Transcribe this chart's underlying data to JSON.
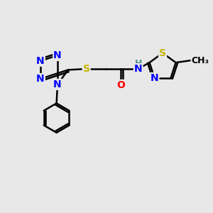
{
  "background_color": "#e8e8e8",
  "atom_colors": {
    "N": "#0000ff",
    "S": "#c8b400",
    "O": "#ff0000",
    "C": "#000000",
    "H": "#4a9090"
  },
  "bond_color": "#000000",
  "bond_width": 1.8,
  "font_size_atom": 10,
  "font_size_small": 9
}
